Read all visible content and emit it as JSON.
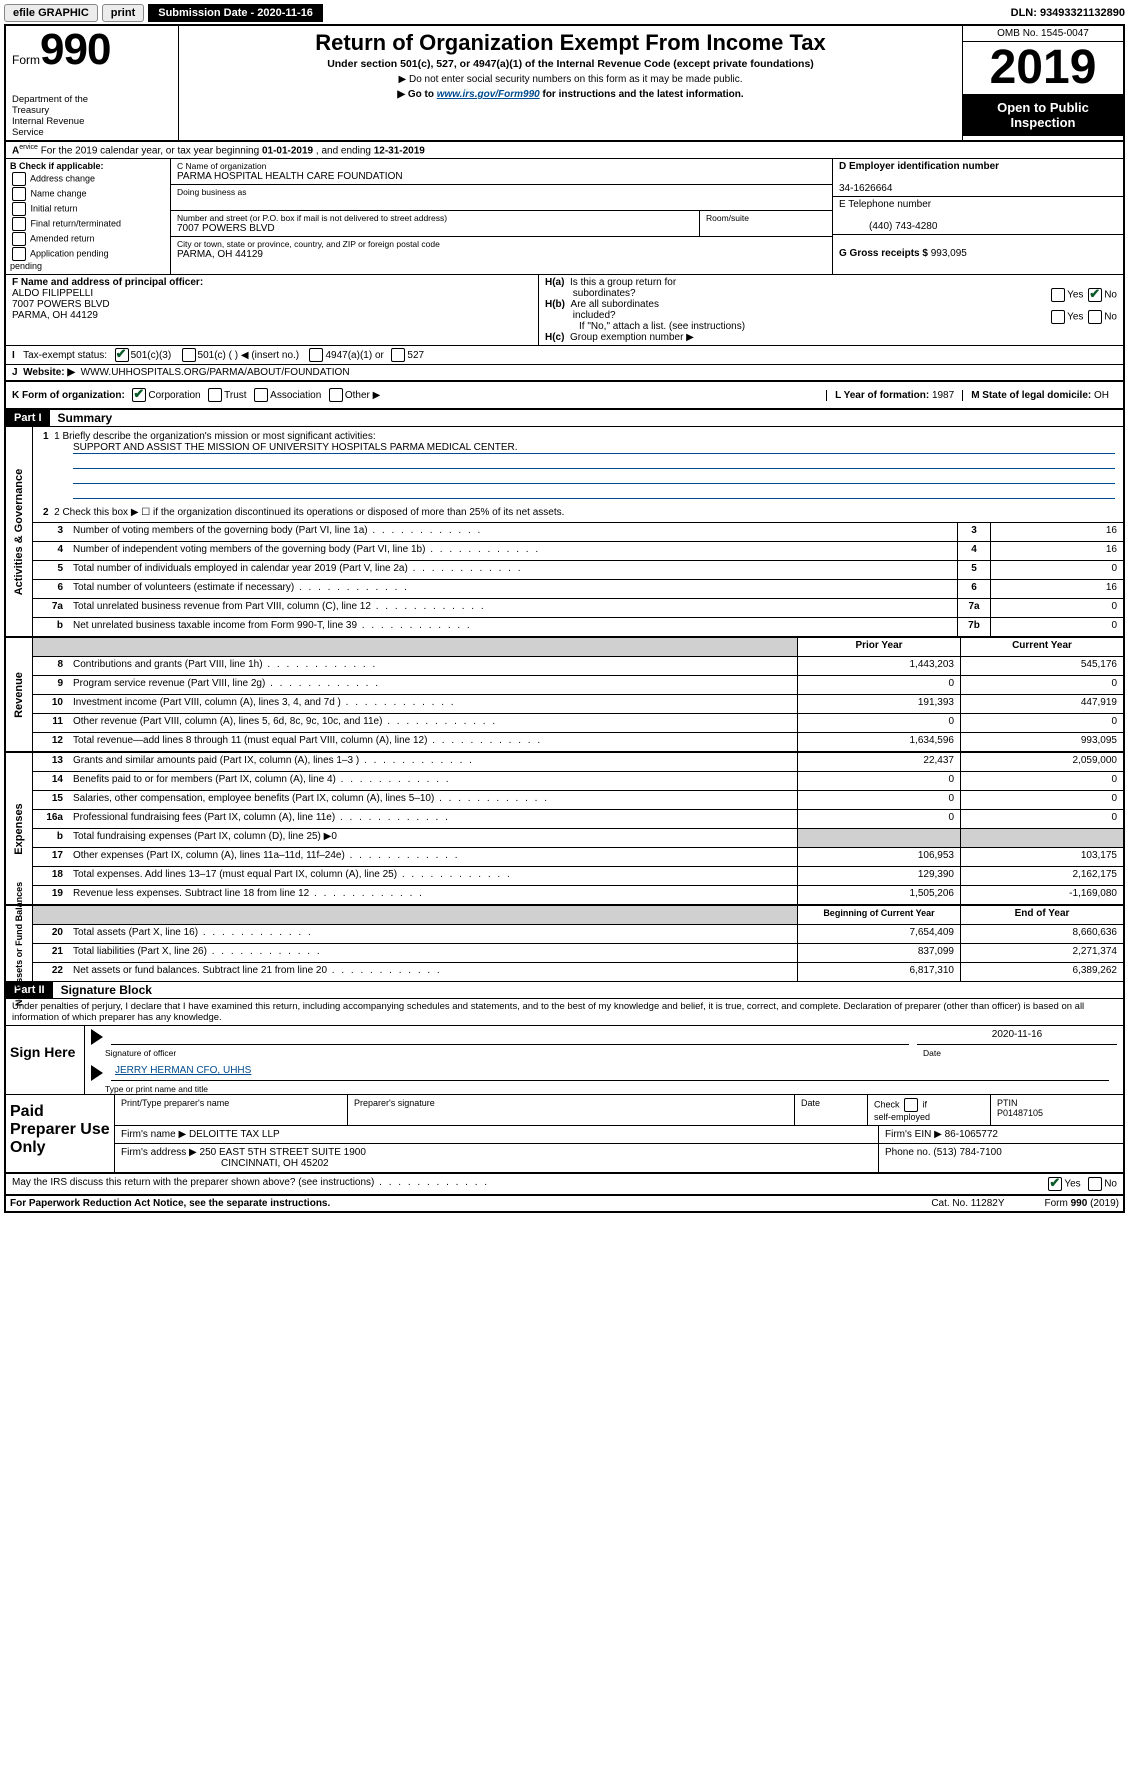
{
  "topbar": {
    "efile": "efile GRAPHIC",
    "print": "print",
    "subdate_label": "Submission Date - 2020-11-16",
    "dln": "DLN: 93493321132890"
  },
  "header": {
    "form_prefix": "Form",
    "form_number": "990",
    "dept": "Department of the Treasury\nInternal Revenue Service",
    "title": "Return of Organization Exempt From Income Tax",
    "sub": "Under section 501(c), 527, or 4947(a)(1) of the Internal Revenue Code (except private foundations)",
    "sub2": "▶ Do not enter social security numbers on this form as it may be made public.",
    "sub3_pre": "▶ Go to ",
    "sub3_link": "www.irs.gov/Form990",
    "sub3_post": " for instructions and the latest information.",
    "omb": "OMB No. 1545-0047",
    "year": "2019",
    "otp": "Open to Public Inspection"
  },
  "year_line": {
    "pre": "For the 2019 calendar year, or tax year beginning ",
    "begin": "01-01-2019",
    "mid": " , and ending ",
    "end": "12-31-2019"
  },
  "check": {
    "label": "B Check if applicable:",
    "items": [
      "Address change",
      "Name change",
      "Initial return",
      "Final return/terminated",
      "Amended return",
      "Application pending"
    ]
  },
  "org": {
    "name_label": "C Name of organization",
    "name": "PARMA HOSPITAL HEALTH CARE FOUNDATION",
    "dba_label": "Doing business as",
    "addr_label": "Number and street (or P.O. box if mail is not delivered to street address)",
    "room_label": "Room/suite",
    "addr": "7007 POWERS BLVD",
    "city_label": "City or town, state or province, country, and ZIP or foreign postal code",
    "city": "PARMA, OH  44129"
  },
  "right": {
    "ein_label": "D Employer identification number",
    "ein": "34-1626664",
    "phone_label": "E Telephone number",
    "phone": "(440) 743-4280",
    "gross_label": "G Gross receipts $ ",
    "gross": "993,095"
  },
  "officer": {
    "label": "F  Name and address of principal officer:",
    "name": "ALDO FILIPPELLI",
    "addr1": "7007 POWERS BLVD",
    "addr2": "PARMA, OH  44129"
  },
  "h": {
    "a": "H(a)  Is this a group return for subordinates?",
    "b": "H(b)  Are all subordinates included?",
    "bnote": "If \"No,\" attach a list. (see instructions)",
    "c": "H(c)  Group exemption number ▶"
  },
  "tax_status": {
    "label": "Tax-exempt status:",
    "opts": [
      "501(c)(3)",
      "501(c) (   ) ◀ (insert no.)",
      "4947(a)(1) or",
      "527"
    ]
  },
  "website": {
    "label": "Website: ▶",
    "val": "WWW.UHHOSPITALS.ORG/PARMA/ABOUT/FOUNDATION"
  },
  "org_form": {
    "label": "K Form of organization:",
    "opts": [
      "Corporation",
      "Trust",
      "Association",
      "Other ▶"
    ],
    "year_label": "L Year of formation: ",
    "year": "1987",
    "state_label": "M State of legal domicile: ",
    "state": "OH"
  },
  "part1": {
    "hdr": "Part I",
    "title": "Summary",
    "mission_label": "1  Briefly describe the organization's mission or most significant activities:",
    "mission": "SUPPORT AND ASSIST THE MISSION OF UNIVERSITY HOSPITALS PARMA MEDICAL CENTER.",
    "line2": "2   Check this box ▶ ☐  if the organization discontinued its operations or disposed of more than 25% of its net assets."
  },
  "sections": {
    "ag": "Activities & Governance",
    "rev": "Revenue",
    "exp": "Expenses",
    "net": "Net Assets or Fund Balances"
  },
  "gov_rows": [
    {
      "no": "3",
      "desc": "Number of voting members of the governing body (Part VI, line 1a)",
      "cell": "3",
      "val": "16"
    },
    {
      "no": "4",
      "desc": "Number of independent voting members of the governing body (Part VI, line 1b)",
      "cell": "4",
      "val": "16"
    },
    {
      "no": "5",
      "desc": "Total number of individuals employed in calendar year 2019 (Part V, line 2a)",
      "cell": "5",
      "val": "0"
    },
    {
      "no": "6",
      "desc": "Total number of volunteers (estimate if necessary)",
      "cell": "6",
      "val": "16"
    },
    {
      "no": "7a",
      "desc": "Total unrelated business revenue from Part VIII, column (C), line 12",
      "cell": "7a",
      "val": "0"
    },
    {
      "no": "b",
      "desc": "Net unrelated business taxable income from Form 990-T, line 39",
      "cell": "7b",
      "val": "0"
    }
  ],
  "revexp_hdr": {
    "prior": "Prior Year",
    "current": "Current Year"
  },
  "rev_rows": [
    {
      "no": "8",
      "desc": "Contributions and grants (Part VIII, line 1h)",
      "p": "1,443,203",
      "c": "545,176"
    },
    {
      "no": "9",
      "desc": "Program service revenue (Part VIII, line 2g)",
      "p": "0",
      "c": "0"
    },
    {
      "no": "10",
      "desc": "Investment income (Part VIII, column (A), lines 3, 4, and 7d )",
      "p": "191,393",
      "c": "447,919"
    },
    {
      "no": "11",
      "desc": "Other revenue (Part VIII, column (A), lines 5, 6d, 8c, 9c, 10c, and 11e)",
      "p": "0",
      "c": "0"
    },
    {
      "no": "12",
      "desc": "Total revenue—add lines 8 through 11 (must equal Part VIII, column (A), line 12)",
      "p": "1,634,596",
      "c": "993,095"
    }
  ],
  "exp_rows": [
    {
      "no": "13",
      "desc": "Grants and similar amounts paid (Part IX, column (A), lines 1–3 )",
      "p": "22,437",
      "c": "2,059,000"
    },
    {
      "no": "14",
      "desc": "Benefits paid to or for members (Part IX, column (A), line 4)",
      "p": "0",
      "c": "0"
    },
    {
      "no": "15",
      "desc": "Salaries, other compensation, employee benefits (Part IX, column (A), lines 5–10)",
      "p": "0",
      "c": "0"
    },
    {
      "no": "16a",
      "desc": "Professional fundraising fees (Part IX, column (A), line 11e)",
      "p": "0",
      "c": "0"
    },
    {
      "no": "b",
      "desc": "Total fundraising expenses (Part IX, column (D), line 25) ▶0",
      "p": "",
      "c": "",
      "shade": true
    },
    {
      "no": "17",
      "desc": "Other expenses (Part IX, column (A), lines 11a–11d, 11f–24e)",
      "p": "106,953",
      "c": "103,175"
    },
    {
      "no": "18",
      "desc": "Total expenses. Add lines 13–17 (must equal Part IX, column (A), line 25)",
      "p": "129,390",
      "c": "2,162,175"
    },
    {
      "no": "19",
      "desc": "Revenue less expenses. Subtract line 18 from line 12",
      "p": "1,505,206",
      "c": "-1,169,080"
    }
  ],
  "net_hdr": {
    "b": "Beginning of Current Year",
    "e": "End of Year"
  },
  "net_rows": [
    {
      "no": "20",
      "desc": "Total assets (Part X, line 16)",
      "p": "7,654,409",
      "c": "8,660,636"
    },
    {
      "no": "21",
      "desc": "Total liabilities (Part X, line 26)",
      "p": "837,099",
      "c": "2,271,374"
    },
    {
      "no": "22",
      "desc": "Net assets or fund balances. Subtract line 21 from line 20",
      "p": "6,817,310",
      "c": "6,389,262"
    }
  ],
  "part2": {
    "hdr": "Part II",
    "title": "Signature Block",
    "decl": "Under penalties of perjury, I declare that I have examined this return, including accompanying schedules and statements, and to the best of my knowledge and belief, it is true, correct, and complete. Declaration of preparer (other than officer) is based on all information of which preparer has any knowledge."
  },
  "sign": {
    "here": "Sign Here",
    "sig_label": "Signature of officer",
    "date_label": "Date",
    "date": "2020-11-16",
    "name": "JERRY HERMAN  CFO, UHHS",
    "name_label": "Type or print name and title"
  },
  "paid": {
    "label": "Paid Preparer Use Only",
    "h1": "Print/Type preparer's name",
    "h2": "Preparer's signature",
    "h3": "Date",
    "h4": "Check ☐ if self-employed",
    "h5_label": "PTIN",
    "h5": "P01487105",
    "firm_label": "Firm's name    ▶ ",
    "firm": "DELOITTE TAX LLP",
    "ein_label": "Firm's EIN ▶ ",
    "ein": "86-1065772",
    "addr_label": "Firm's address ▶ ",
    "addr1": "250 EAST 5TH STREET SUITE 1900",
    "addr2": "CINCINNATI, OH  45202",
    "phone_label": "Phone no. ",
    "phone": "(513) 784-7100"
  },
  "discuss": "May the IRS discuss this return with the preparer shown above? (see instructions)",
  "footer": {
    "l": "For Paperwork Reduction Act Notice, see the separate instructions.",
    "m": "Cat. No. 11282Y",
    "r": "Form 990 (2019)"
  }
}
